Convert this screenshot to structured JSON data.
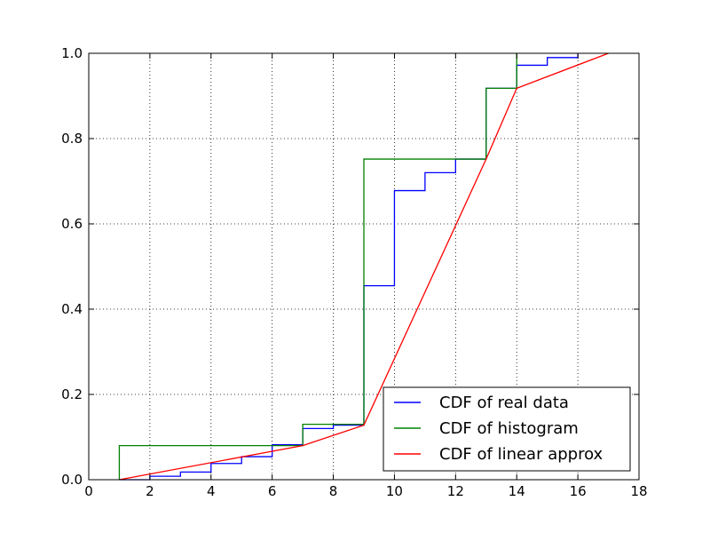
{
  "chart_data": {
    "type": "line",
    "xlim": [
      0,
      18
    ],
    "ylim": [
      0.0,
      1.0
    ],
    "x_ticks": [
      "0",
      "2",
      "4",
      "6",
      "8",
      "10",
      "12",
      "14",
      "16",
      "18"
    ],
    "y_ticks": [
      "0.0",
      "0.2",
      "0.4",
      "0.6",
      "0.8",
      "1.0"
    ],
    "grid": true,
    "legend_position": "lower-right",
    "series": [
      {
        "name": "CDF of real data",
        "color": "#0000ff",
        "step": true,
        "points": [
          [
            1,
            0.0
          ],
          [
            2,
            0.008
          ],
          [
            3,
            0.018
          ],
          [
            4,
            0.038
          ],
          [
            5,
            0.054
          ],
          [
            6,
            0.082
          ],
          [
            7,
            0.12
          ],
          [
            8,
            0.128
          ],
          [
            9,
            0.455
          ],
          [
            10,
            0.678
          ],
          [
            11,
            0.72
          ],
          [
            12,
            0.752
          ],
          [
            13,
            0.918
          ],
          [
            14,
            0.972
          ],
          [
            15,
            0.99
          ],
          [
            16,
            1.0
          ]
        ]
      },
      {
        "name": "CDF of histogram",
        "color": "#008000",
        "step": true,
        "points": [
          [
            1,
            0.0
          ],
          [
            1,
            0.08
          ],
          [
            7,
            0.13
          ],
          [
            9,
            0.752
          ],
          [
            13,
            0.918
          ],
          [
            14,
            1.0
          ]
        ]
      },
      {
        "name": "CDF of linear approx",
        "color": "#ff0000",
        "step": false,
        "points": [
          [
            1,
            0.0
          ],
          [
            7,
            0.08
          ],
          [
            9,
            0.128
          ],
          [
            13,
            0.752
          ],
          [
            14,
            0.918
          ],
          [
            17,
            1.0
          ]
        ]
      }
    ]
  }
}
